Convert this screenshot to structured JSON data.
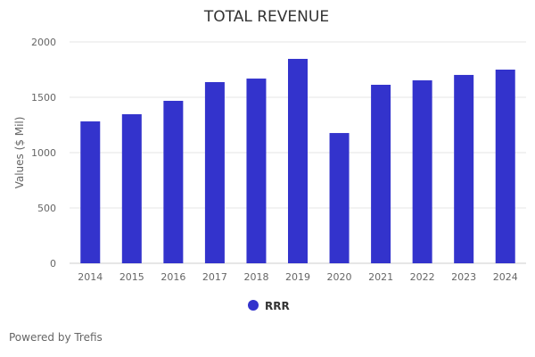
{
  "chart_data": {
    "type": "bar",
    "title": "TOTAL REVENUE",
    "xlabel": "",
    "ylabel": "Values ($ Mil)",
    "categories": [
      "2014",
      "2015",
      "2016",
      "2017",
      "2018",
      "2019",
      "2020",
      "2021",
      "2022",
      "2023",
      "2024"
    ],
    "series": [
      {
        "name": "RRR",
        "color": "#3333cc",
        "values": [
          1282,
          1347,
          1468,
          1637,
          1669,
          1847,
          1177,
          1613,
          1653,
          1702,
          1750
        ]
      }
    ],
    "ylim": [
      0,
      2000
    ],
    "yticks": [
      0,
      500,
      1000,
      1500,
      2000
    ],
    "grid": true,
    "legend": "bottom-center"
  },
  "credit": "Powered by Trefis"
}
